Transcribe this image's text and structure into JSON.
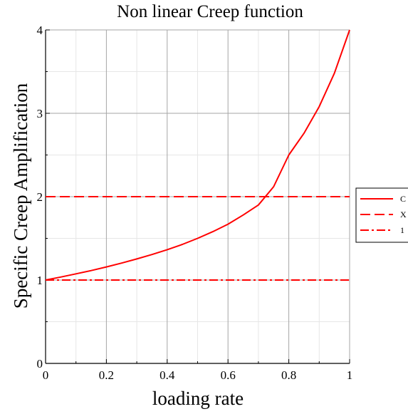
{
  "chart_data": {
    "type": "line",
    "title": "Non linear Creep function",
    "xlabel": "loading rate",
    "ylabel": "Specific Creep Amplification",
    "xlim": [
      0,
      1
    ],
    "ylim": [
      0,
      4
    ],
    "x_ticks": [
      "0",
      "0.2",
      "0.4",
      "0.6",
      "0.8",
      "1"
    ],
    "y_ticks": [
      "0",
      "1",
      "2",
      "3",
      "4"
    ],
    "grid": true,
    "legend_position": "right",
    "series": [
      {
        "name": "C",
        "color": "#ff0000",
        "style": "solid",
        "x": [
          0,
          0.05,
          0.1,
          0.15,
          0.2,
          0.25,
          0.3,
          0.35,
          0.4,
          0.45,
          0.5,
          0.55,
          0.6,
          0.65,
          0.7,
          0.75,
          0.8,
          0.85,
          0.9,
          0.95,
          1.0
        ],
        "y": [
          1.0,
          1.036,
          1.074,
          1.114,
          1.157,
          1.203,
          1.253,
          1.306,
          1.364,
          1.427,
          1.5,
          1.58,
          1.67,
          1.78,
          1.9,
          2.12,
          2.5,
          2.76,
          3.08,
          3.48,
          4.0
        ]
      },
      {
        "name": "X",
        "color": "#ff0000",
        "style": "dash",
        "x": [
          0,
          1
        ],
        "y": [
          2,
          2
        ]
      },
      {
        "name": "1",
        "color": "#ff0000",
        "style": "dashdot",
        "x": [
          0,
          1
        ],
        "y": [
          1,
          1
        ]
      }
    ]
  }
}
